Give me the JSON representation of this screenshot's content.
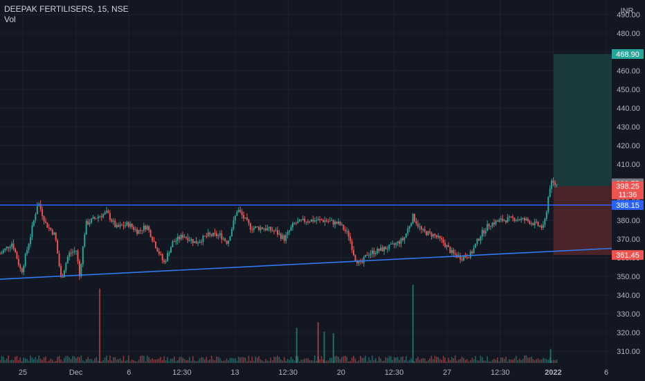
{
  "header": {
    "symbol": "DEEPAK FERTILISERS, 15, NSE",
    "indicator": "Vol"
  },
  "currency": "INR",
  "colors": {
    "background": "#131722",
    "grid": "#1e222d",
    "up": "#26a69a",
    "down": "#ef5350",
    "resistance_line": "#2962ff",
    "support_line": "#3179f5",
    "target_zone": "#1b3a3d",
    "stop_zone": "#4a2429",
    "axis_text": "#b2b5be"
  },
  "chart_data": {
    "type": "candlestick",
    "title": "DEEPAK FERTILISERS, 15, NSE",
    "ylim": [
      305,
      495
    ],
    "y_ticks": [
      310,
      320,
      330,
      340,
      350,
      360,
      370,
      380,
      390,
      400,
      410,
      420,
      430,
      440,
      450,
      460,
      470,
      480,
      490
    ],
    "x_ticks": [
      "25",
      "Dec",
      "6",
      "12:30",
      "13",
      "12:30",
      "20",
      "12:30",
      "27",
      "12:30",
      "2022",
      "6"
    ],
    "price_path": [
      [
        0,
        362
      ],
      [
        0.02,
        368
      ],
      [
        0.035,
        352
      ],
      [
        0.05,
        372
      ],
      [
        0.062,
        390
      ],
      [
        0.075,
        378
      ],
      [
        0.09,
        372
      ],
      [
        0.1,
        348
      ],
      [
        0.112,
        362
      ],
      [
        0.125,
        364
      ],
      [
        0.13,
        350
      ],
      [
        0.14,
        378
      ],
      [
        0.16,
        382
      ],
      [
        0.175,
        384
      ],
      [
        0.19,
        376
      ],
      [
        0.21,
        378
      ],
      [
        0.225,
        374
      ],
      [
        0.24,
        377
      ],
      [
        0.255,
        366
      ],
      [
        0.268,
        357
      ],
      [
        0.282,
        368
      ],
      [
        0.3,
        372
      ],
      [
        0.32,
        368
      ],
      [
        0.34,
        372
      ],
      [
        0.36,
        372
      ],
      [
        0.372,
        368
      ],
      [
        0.388,
        386
      ],
      [
        0.41,
        376
      ],
      [
        0.43,
        376
      ],
      [
        0.45,
        374
      ],
      [
        0.465,
        370
      ],
      [
        0.48,
        378
      ],
      [
        0.5,
        380
      ],
      [
        0.53,
        380
      ],
      [
        0.555,
        378
      ],
      [
        0.57,
        372
      ],
      [
        0.58,
        360
      ],
      [
        0.59,
        356
      ],
      [
        0.6,
        362
      ],
      [
        0.62,
        364
      ],
      [
        0.64,
        366
      ],
      [
        0.66,
        370
      ],
      [
        0.675,
        382
      ],
      [
        0.69,
        374
      ],
      [
        0.71,
        372
      ],
      [
        0.725,
        368
      ],
      [
        0.74,
        362
      ],
      [
        0.755,
        360
      ],
      [
        0.77,
        362
      ],
      [
        0.785,
        372
      ],
      [
        0.8,
        378
      ],
      [
        0.82,
        380
      ],
      [
        0.84,
        381
      ],
      [
        0.86,
        380
      ],
      [
        0.875,
        378
      ],
      [
        0.888,
        376
      ],
      [
        0.892,
        382
      ],
      [
        0.896,
        392
      ],
      [
        0.9,
        400
      ],
      [
        0.91,
        399
      ]
    ],
    "lines": [
      {
        "name": "horizontal line",
        "from": [
          "start",
          388.15
        ],
        "to": [
          "end",
          388.15
        ]
      },
      {
        "name": "trend line",
        "from": [
          "start",
          348.5
        ],
        "to": [
          "end",
          365
        ]
      }
    ],
    "position": {
      "entry": 398.25,
      "target": 468.9,
      "stop": 361.45
    },
    "price_labels": [
      {
        "value": 468.9,
        "text": "468.90",
        "color": "#26a69a"
      },
      {
        "value": 399.75,
        "text": "399.75",
        "color": "#787b86"
      },
      {
        "value": 398.25,
        "text": "398.25",
        "sub": "11:36",
        "color": "#ef5350"
      },
      {
        "value": 388.15,
        "text": "388.15",
        "color": "#2962ff"
      },
      {
        "value": 361.45,
        "text": "361.45",
        "color": "#ef5350"
      }
    ],
    "volume_spikes": [
      {
        "at": 0.163,
        "height": 0.95,
        "up": false
      },
      {
        "at": 0.675,
        "height": 1.0,
        "up": true
      },
      {
        "at": 0.485,
        "height": 0.45,
        "up": true
      },
      {
        "at": 0.52,
        "height": 0.52,
        "up": false
      },
      {
        "at": 0.53,
        "height": 0.4,
        "up": true
      },
      {
        "at": 0.545,
        "height": 0.38,
        "up": true
      },
      {
        "at": 0.9,
        "height": 0.18,
        "up": true
      }
    ]
  }
}
